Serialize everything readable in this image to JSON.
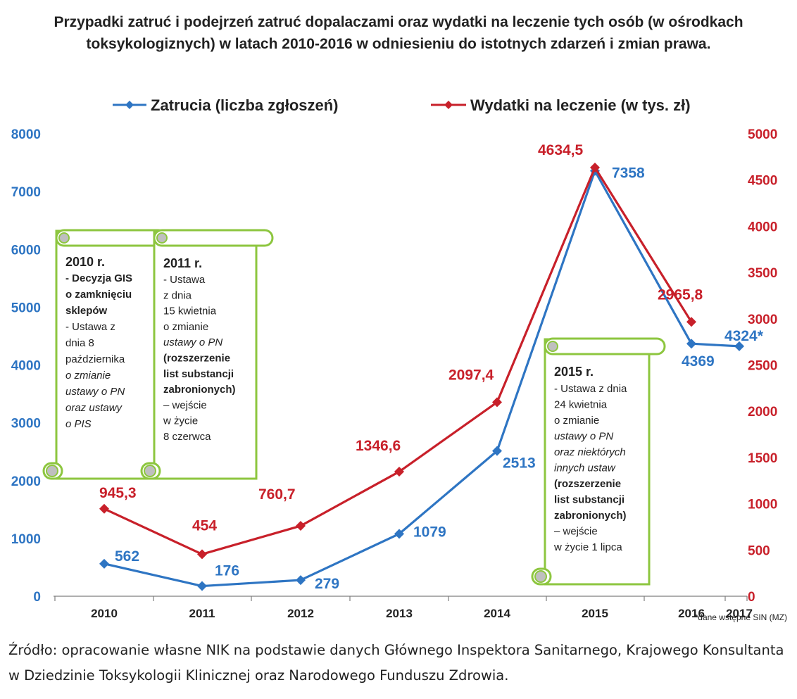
{
  "chart_data": {
    "type": "line",
    "title": "Przypadki zatruć i podejrzeń zatruć dopalaczami oraz wydatki na leczenie tych osób (w ośrodkach toksykologiznych) w latach 2010-2016  w odniesieniu do istotnych zdarzeń i zmian prawa.",
    "x": [
      "2010",
      "2011",
      "2012",
      "2013",
      "2014",
      "2015",
      "2016",
      "2017"
    ],
    "series": [
      {
        "name": "Zatrucia (liczba zgłoszeń)",
        "axis": "left",
        "color": "#2E75C3",
        "values": [
          562,
          176,
          279,
          1079,
          2513,
          7358,
          4369,
          4324
        ],
        "labels": [
          "562",
          "176",
          "279",
          "1079",
          "2513",
          "7358",
          "4369",
          "4324*"
        ]
      },
      {
        "name": "Wydatki na leczenie (w tys. zł)",
        "axis": "right",
        "color": "#C8202A",
        "values": [
          945.3,
          454,
          760.7,
          1346.6,
          2097.4,
          4634.5,
          2965.8,
          null
        ],
        "labels": [
          "945,3",
          "454",
          "760,7",
          "1346,6",
          "2097,4",
          "4634,5",
          "2965,8",
          ""
        ]
      }
    ],
    "y_left": {
      "ylim": [
        0,
        8000
      ],
      "ticks": [
        "0",
        "1000",
        "2000",
        "3000",
        "4000",
        "5000",
        "6000",
        "7000",
        "8000"
      ]
    },
    "y_right": {
      "ylim": [
        0,
        5000
      ],
      "ticks": [
        "0",
        "500",
        "1000",
        "1500",
        "2000",
        "2500",
        "3000",
        "3500",
        "4000",
        "4500",
        "5000"
      ]
    },
    "legend": "top",
    "grid": false,
    "footnote": "*dane wstępne SIN (MZ)"
  },
  "annotations": [
    {
      "heading": "2010 r.",
      "lines": [
        {
          "text": "- Decyzja GIS",
          "style": "bold"
        },
        {
          "text": "o zamknięciu",
          "style": "bold"
        },
        {
          "text": "sklepów",
          "style": "bold"
        },
        {
          "text": "- Ustawa z",
          "style": "normal"
        },
        {
          "text": "dnia 8",
          "style": "normal"
        },
        {
          "text": "października",
          "style": "normal"
        },
        {
          "text": "o zmianie",
          "style": "italic"
        },
        {
          "text": "ustawy o PN",
          "style": "italic"
        },
        {
          "text": "oraz ustawy",
          "style": "italic"
        },
        {
          "text": "o PIS",
          "style": "italic"
        }
      ]
    },
    {
      "heading": "2011 r.",
      "lines": [
        {
          "text": "- Ustawa",
          "style": "normal"
        },
        {
          "text": "z dnia",
          "style": "normal"
        },
        {
          "text": "15 kwietnia",
          "style": "normal"
        },
        {
          "text": "o zmianie",
          "style": "normal"
        },
        {
          "text": "ustawy o PN",
          "style": "italic"
        },
        {
          "text": "(rozszerzenie",
          "style": "bold"
        },
        {
          "text": "list substancji",
          "style": "bold"
        },
        {
          "text": "zabronionych)",
          "style": "bold"
        },
        {
          "text": "– wejście",
          "style": "normal"
        },
        {
          "text": "w życie",
          "style": "normal"
        },
        {
          "text": "8 czerwca",
          "style": "normal"
        }
      ]
    },
    {
      "heading": "2015 r.",
      "lines": [
        {
          "text": "- Ustawa z dnia",
          "style": "normal"
        },
        {
          "text": "24 kwietnia",
          "style": "normal"
        },
        {
          "text": "o zmianie",
          "style": "normal"
        },
        {
          "text": "ustawy o PN",
          "style": "italic"
        },
        {
          "text": "oraz niektórych",
          "style": "italic"
        },
        {
          "text": "innych ustaw",
          "style": "italic"
        },
        {
          "text": "(rozszerzenie",
          "style": "bold"
        },
        {
          "text": "list substancji",
          "style": "bold"
        },
        {
          "text": "zabronionych)",
          "style": "bold"
        },
        {
          "text": "– wejście",
          "style": "normal"
        },
        {
          "text": "w życie 1 lipca",
          "style": "normal"
        }
      ]
    }
  ],
  "source": "Źródło: opracowanie  własne NIK na podstawie danych Głównego Inspektora Sanitarnego, Krajowego Konsultanta  w Dziedzinie Toksykologii  Klinicznej oraz Narodowego Funduszu Zdrowia.",
  "colors": {
    "scroll_border": "#8DC63F",
    "scroll_curl": "#BFBFBF"
  }
}
